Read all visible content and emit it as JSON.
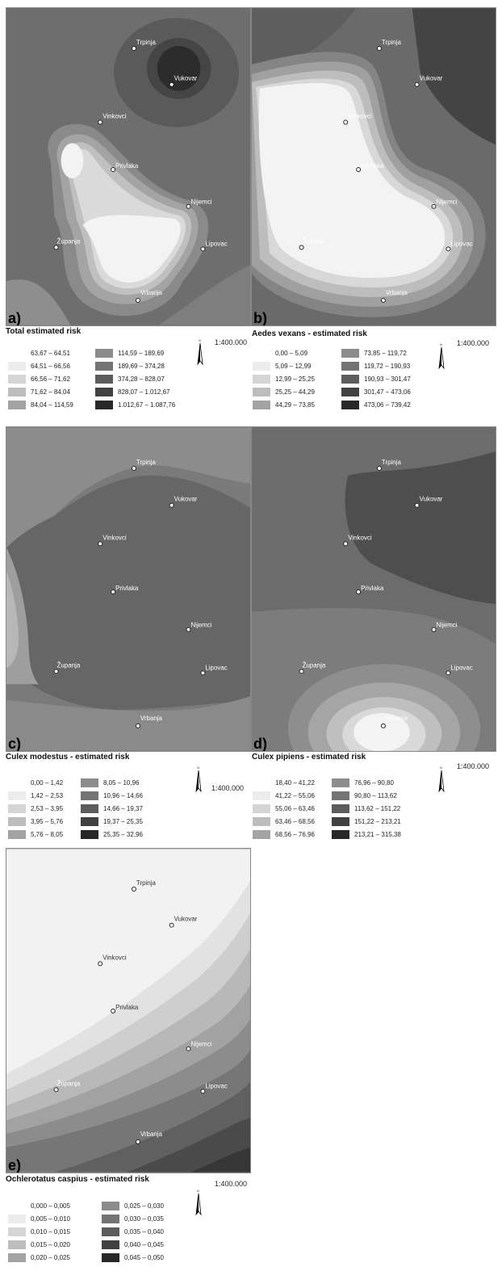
{
  "cities": [
    "Trpinja",
    "Vukovar",
    "Vinkovci",
    "Privlaka",
    "Nijemci",
    "Županja",
    "Lipovac",
    "Vrbanja"
  ],
  "panels": [
    {
      "letter": "a)",
      "title": "Total estimated risk",
      "scale": "1:400.000",
      "legend": [
        "63,67 – 64,51",
        "64,51 – 66,56",
        "66,56 – 71,62",
        "71,62 – 84,04",
        "84,04 – 114,59",
        "114,59 – 189,69",
        "189,69 – 374,28",
        "374,28 – 828,07",
        "828,07 – 1.012,67",
        "1.012,67 – 1.087,76"
      ]
    },
    {
      "letter": "b)",
      "title": "Aedes vexans - estimated risk",
      "scale": "1:400.000",
      "legend": [
        "0,00 – 5,09",
        "5,09 – 12,99",
        "12,99 – 25,25",
        "25,25 – 44,29",
        "44,29 – 73,85",
        "73,85 – 119,72",
        "119,72 – 190,93",
        "190,93 – 301,47",
        "301,47 – 473,06",
        "473,06 – 739,42"
      ]
    },
    {
      "letter": "c)",
      "title": "Culex modestus - estimated risk",
      "scale": "1:400.000",
      "legend": [
        "0,00 – 1,42",
        "1,42 – 2,53",
        "2,53 – 3,95",
        "3,95 – 5,76",
        "5,76 – 8,05",
        "8,05 – 10,96",
        "10,96 – 14,66",
        "14,66 – 19,37",
        "19,37 – 25,35",
        "25,35 – 32,96"
      ]
    },
    {
      "letter": "d)",
      "title": "Culex pipiens - estimated risk",
      "scale": "1:400.000",
      "legend": [
        "18,40 – 41,22",
        "41,22 – 55,06",
        "55,06 – 63,46",
        "63,46 – 68,56",
        "68,56 – 76,96",
        "76,96 – 90,80",
        "90,80 – 113,62",
        "113,62 – 151,22",
        "151,22 – 213,21",
        "213,21 – 315,38"
      ]
    },
    {
      "letter": "e)",
      "title": "Ochlerotatus caspius - estimated risk",
      "scale": "1:400.000",
      "legend": [
        "0,000 – 0,005",
        "0,005 – 0,010",
        "0,010 – 0,015",
        "0,015 – 0,020",
        "0,020 – 0,025",
        "0,025 – 0,030",
        "0,030 – 0,035",
        "0,035 – 0,040",
        "0,040 – 0,045",
        "0,045 – 0,050"
      ]
    }
  ],
  "legend_colors": [
    "#f4f4f4",
    "#e4e4e4",
    "#cdcdcd",
    "#b5b5b5",
    "#9a9a9a",
    "#838383",
    "#6c6c6c",
    "#555555",
    "#3e3e3e",
    "#262626"
  ]
}
